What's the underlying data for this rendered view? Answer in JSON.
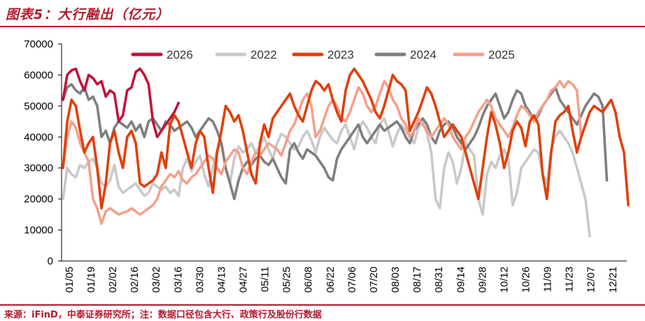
{
  "header": {
    "title": "图表5：大行融出（亿元）"
  },
  "footer": {
    "source": "来源：iFinD，中泰证券研究所；注：数据口径包含大行、政策行及股份行数据"
  },
  "chart_data": {
    "type": "line",
    "title": "图表5：大行融出（亿元）",
    "xlabel": "",
    "ylabel": "",
    "ylim": [
      0,
      70000
    ],
    "y_ticks": [
      0,
      10000,
      20000,
      30000,
      40000,
      50000,
      60000,
      70000
    ],
    "x_tick_labels": [
      "01/05",
      "01/19",
      "02/02",
      "02/16",
      "03/02",
      "03/16",
      "03/30",
      "04/13",
      "04/27",
      "05/11",
      "05/25",
      "06/08",
      "06/22",
      "07/06",
      "07/20",
      "08/03",
      "08/17",
      "08/31",
      "09/14",
      "09/28",
      "10/12",
      "10/26",
      "11/09",
      "11/23",
      "12/07",
      "12/21"
    ],
    "legend_position": "top",
    "grid": false,
    "series": [
      {
        "name": "2026",
        "color": "#c0143c",
        "values": [
          52000,
          60000,
          61500,
          62000,
          58000,
          55000,
          60000,
          59000,
          57000,
          58000,
          53000,
          55000,
          54000,
          45000,
          47000,
          55000,
          56000,
          61000,
          62000,
          60000,
          57000,
          45000,
          40000,
          42000,
          44000,
          46000,
          48000,
          51000
        ]
      },
      {
        "name": "2022",
        "color": "#c9c9c9",
        "values": [
          20000,
          30000,
          28000,
          27000,
          31000,
          30000,
          32000,
          33000,
          30000,
          25000,
          24000,
          26000,
          31000,
          24000,
          22000,
          23000,
          24000,
          25000,
          23000,
          21000,
          22000,
          25000,
          24000,
          23000,
          24000,
          22000,
          23000,
          21000,
          30000,
          33000,
          29000,
          32000,
          34000,
          28000,
          24000,
          30000,
          36000,
          38000,
          30000,
          25000,
          33000,
          37000,
          35000,
          36000,
          38000,
          35000,
          37000,
          40000,
          36000,
          33000,
          38000,
          41000,
          40000,
          38000,
          36000,
          37000,
          40000,
          42000,
          39000,
          35000,
          40000,
          43000,
          41000,
          39000,
          38000,
          42000,
          44000,
          40000,
          36000,
          42000,
          45000,
          43000,
          40000,
          38000,
          44000,
          46000,
          42000,
          37000,
          41000,
          44000,
          42000,
          40000,
          38000,
          43000,
          45000,
          41000,
          35000,
          20000,
          17000,
          30000,
          35000,
          32000,
          25000,
          30000,
          38000,
          36000,
          34000,
          20000,
          15000,
          28000,
          32000,
          30000,
          34000,
          36000,
          33000,
          18000,
          22000,
          30000,
          32000,
          34000,
          36000,
          35000,
          28000,
          25000,
          36000,
          40000,
          42000,
          40000,
          38000,
          35000,
          30000,
          25000,
          20000,
          8000
        ]
      },
      {
        "name": "2023",
        "color": "#e0400a",
        "values": [
          30000,
          45000,
          52000,
          50000,
          42000,
          35000,
          38000,
          40000,
          30000,
          17000,
          25000,
          38000,
          42000,
          35000,
          30000,
          40000,
          42000,
          38000,
          25000,
          24000,
          25000,
          26000,
          28000,
          35000,
          30000,
          44000,
          47000,
          45000,
          40000,
          35000,
          30000,
          38000,
          42000,
          40000,
          30000,
          22000,
          35000,
          42000,
          50000,
          48000,
          45000,
          47000,
          42000,
          35000,
          28000,
          25000,
          38000,
          44000,
          40000,
          46000,
          48000,
          50000,
          52000,
          54000,
          50000,
          47000,
          45000,
          50000,
          55000,
          58000,
          57000,
          55000,
          57000,
          52000,
          48000,
          45000,
          55000,
          60000,
          62000,
          60000,
          58000,
          55000,
          52000,
          48000,
          46000,
          50000,
          55000,
          60000,
          58000,
          57000,
          55000,
          42000,
          45000,
          48000,
          52000,
          56000,
          54000,
          50000,
          45000,
          40000,
          42000,
          44000,
          42000,
          40000,
          35000,
          30000,
          25000,
          20000,
          30000,
          40000,
          48000,
          44000,
          38000,
          30000,
          35000,
          42000,
          45000,
          43000,
          37000,
          45000,
          47000,
          44000,
          28000,
          20000,
          35000,
          45000,
          47000,
          48000,
          50000,
          42000,
          35000,
          40000,
          44000,
          48000,
          50000,
          49000,
          48000,
          50000,
          52000,
          48000,
          40000,
          35000,
          18000
        ]
      },
      {
        "name": "2024",
        "color": "#7f7f7f",
        "values": [
          52000,
          56000,
          57000,
          55000,
          54000,
          56000,
          52000,
          53000,
          50000,
          40000,
          42000,
          38000,
          43000,
          45000,
          44000,
          43000,
          45000,
          42000,
          44000,
          40000,
          45000,
          46000,
          44000,
          42000,
          45000,
          44000,
          42000,
          43000,
          44000,
          45000,
          43000,
          40000,
          42000,
          44000,
          46000,
          45000,
          42000,
          38000,
          30000,
          25000,
          20000,
          26000,
          30000,
          32000,
          31000,
          33000,
          34000,
          32000,
          31000,
          33000,
          30000,
          27000,
          25000,
          36000,
          38000,
          35000,
          33000,
          36000,
          35000,
          34000,
          32000,
          30000,
          27000,
          26000,
          33000,
          36000,
          38000,
          40000,
          42000,
          44000,
          40000,
          38000,
          40000,
          42000,
          44000,
          42000,
          43000,
          44000,
          45000,
          43000,
          40000,
          38000,
          42000,
          44000,
          46000,
          44000,
          40000,
          38000,
          42000,
          44000,
          45000,
          43000,
          40000,
          38000,
          36000,
          38000,
          40000,
          43000,
          47000,
          50000,
          52000,
          54000,
          50000,
          46000,
          48000,
          52000,
          55000,
          54000,
          50000,
          48000,
          45000,
          47000,
          50000,
          52000,
          54000,
          56000,
          52000,
          50000,
          48000,
          46000,
          44000,
          47000,
          50000,
          52000,
          54000,
          53000,
          50000,
          26000
        ]
      },
      {
        "name": "2025",
        "color": "#f4a08c",
        "values": [
          30000,
          40000,
          45000,
          43000,
          38000,
          35000,
          32000,
          20000,
          17000,
          12000,
          16000,
          17000,
          16000,
          15000,
          15500,
          16000,
          17000,
          16000,
          15000,
          16000,
          17000,
          18000,
          20000,
          24000,
          26000,
          28000,
          27000,
          29000,
          26000,
          25000,
          27000,
          28000,
          30000,
          32000,
          34000,
          33000,
          30000,
          28000,
          32000,
          34000,
          36000,
          35000,
          30000,
          28000,
          32000,
          35000,
          34000,
          36000,
          38000,
          37000,
          36000,
          34000,
          38000,
          42000,
          44000,
          48000,
          52000,
          54000,
          50000,
          40000,
          42000,
          46000,
          50000,
          52000,
          50000,
          46000,
          45000,
          48000,
          52000,
          56000,
          54000,
          50000,
          48000,
          50000,
          54000,
          58000,
          56000,
          52000,
          50000,
          46000,
          44000,
          40000,
          42000,
          46000,
          44000,
          42000,
          40000,
          42000,
          44000,
          46000,
          44000,
          40000,
          38000,
          36000,
          40000,
          42000,
          45000,
          48000,
          50000,
          52000,
          50000,
          46000,
          44000,
          42000,
          40000,
          43000,
          47000,
          50000,
          49000,
          47000,
          45000,
          48000,
          50000,
          52000,
          55000,
          56000,
          58000,
          56000,
          58000,
          57000,
          55000,
          40000
        ]
      }
    ]
  }
}
